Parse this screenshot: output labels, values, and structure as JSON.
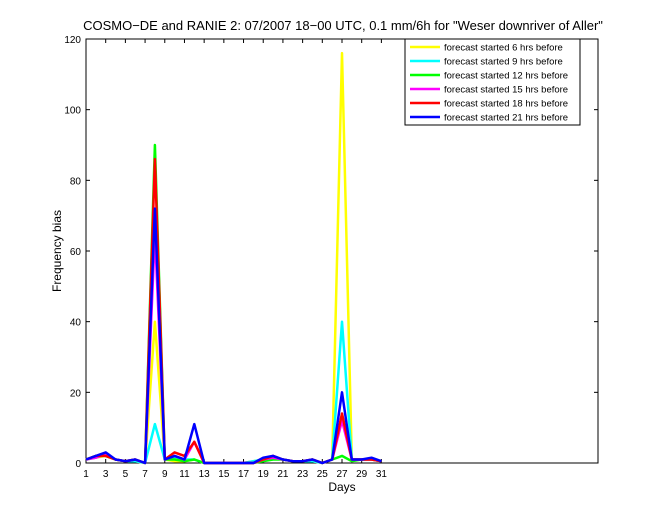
{
  "chart_data": {
    "type": "line",
    "title": "COSMO−DE and RANIE 2: 07/2007 18−00 UTC, 0.1 mm/6h for \"Weser downriver of Aller\"",
    "xlabel": "Days",
    "ylabel": "Frequency bias",
    "xlim": [
      1,
      53
    ],
    "ylim": [
      0,
      120
    ],
    "xticks": [
      "1",
      "3",
      "5",
      "7",
      "9",
      "11",
      "13",
      "15",
      "17",
      "19",
      "21",
      "23",
      "25",
      "27",
      "29",
      "31"
    ],
    "yticks": [
      "0",
      "20",
      "40",
      "60",
      "80",
      "100",
      "120"
    ],
    "legend_position": "top-right",
    "grid": false,
    "x": [
      1,
      2,
      3,
      4,
      5,
      6,
      7,
      8,
      9,
      10,
      11,
      12,
      13,
      14,
      15,
      16,
      17,
      18,
      19,
      20,
      21,
      22,
      23,
      24,
      25,
      26,
      27,
      28,
      29,
      30,
      31
    ],
    "series": [
      {
        "name": "forecast started 6 hrs before",
        "color": "#ffff00",
        "values": [
          1,
          1.5,
          2,
          1,
          0.5,
          0.5,
          0,
          40,
          1,
          0.5,
          0.5,
          1,
          0,
          0,
          0,
          0,
          0,
          0.5,
          1,
          1.5,
          1,
          0.5,
          0.5,
          0.5,
          0,
          1,
          116,
          1,
          1,
          1,
          0.5
        ]
      },
      {
        "name": "forecast started 9 hrs before",
        "color": "#00ffff",
        "values": [
          1,
          1.5,
          2.5,
          1,
          0.5,
          0.5,
          0,
          11,
          1,
          1.5,
          1,
          1,
          0,
          0,
          0,
          0,
          0,
          0.5,
          1,
          1.5,
          1,
          0.5,
          0.5,
          0.5,
          0,
          1,
          40,
          1,
          1,
          1,
          0.5
        ]
      },
      {
        "name": "forecast started 12 hrs before",
        "color": "#00ff00",
        "values": [
          1,
          2,
          2,
          1,
          0.5,
          1,
          0,
          90,
          1,
          1,
          0.5,
          1,
          0,
          0,
          0,
          0,
          0,
          0,
          0.5,
          1,
          1,
          0.5,
          0.5,
          1,
          0,
          1,
          2,
          0.5,
          1,
          1,
          0.5
        ]
      },
      {
        "name": "forecast started 15 hrs before",
        "color": "#ff00ff",
        "values": [
          1,
          1.5,
          2.5,
          1,
          0.5,
          1,
          0,
          65,
          1,
          2,
          1,
          6,
          0,
          0,
          0,
          0,
          0,
          0,
          1,
          1.5,
          1,
          0.5,
          0.5,
          1,
          0,
          1,
          12,
          1,
          1,
          1,
          0.5
        ]
      },
      {
        "name": "forecast started 18 hrs before",
        "color": "#ff0000",
        "values": [
          1,
          2,
          2,
          1,
          0.5,
          1,
          0,
          86,
          1,
          3,
          2,
          6,
          0,
          0,
          0,
          0,
          0,
          0,
          1,
          2,
          1,
          0.5,
          0.5,
          1,
          0,
          1,
          14,
          1,
          1,
          1,
          0.5
        ]
      },
      {
        "name": "forecast started 21 hrs before",
        "color": "#0000ff",
        "values": [
          1,
          2,
          3,
          1,
          0.5,
          1,
          0,
          72,
          1,
          2,
          1,
          11,
          0,
          0,
          0,
          0,
          0,
          0,
          1.5,
          2,
          1,
          0.5,
          0.5,
          1,
          0,
          1,
          20,
          1,
          1,
          1.5,
          0.5
        ]
      }
    ]
  }
}
